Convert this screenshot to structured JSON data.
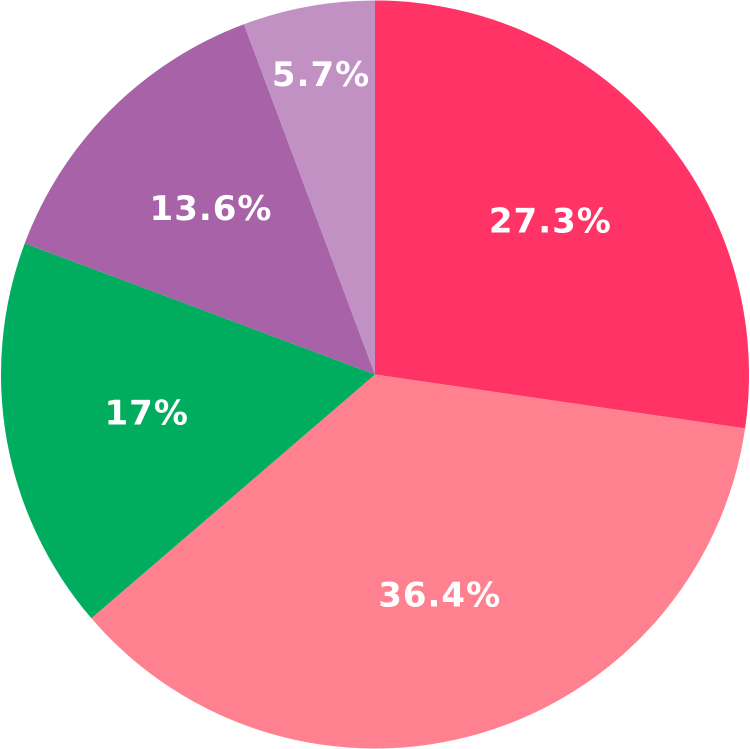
{
  "chart_data": {
    "type": "pie",
    "values": [
      27.3,
      36.4,
      17,
      13.6,
      5.7
    ],
    "value_labels": [
      "27.3%",
      "36.4%",
      "17%",
      "13.6%",
      "5.7%"
    ],
    "colors": [
      "#ff3366",
      "#ff808f",
      "#00ad5f",
      "#a862a8",
      "#c291c4"
    ]
  }
}
